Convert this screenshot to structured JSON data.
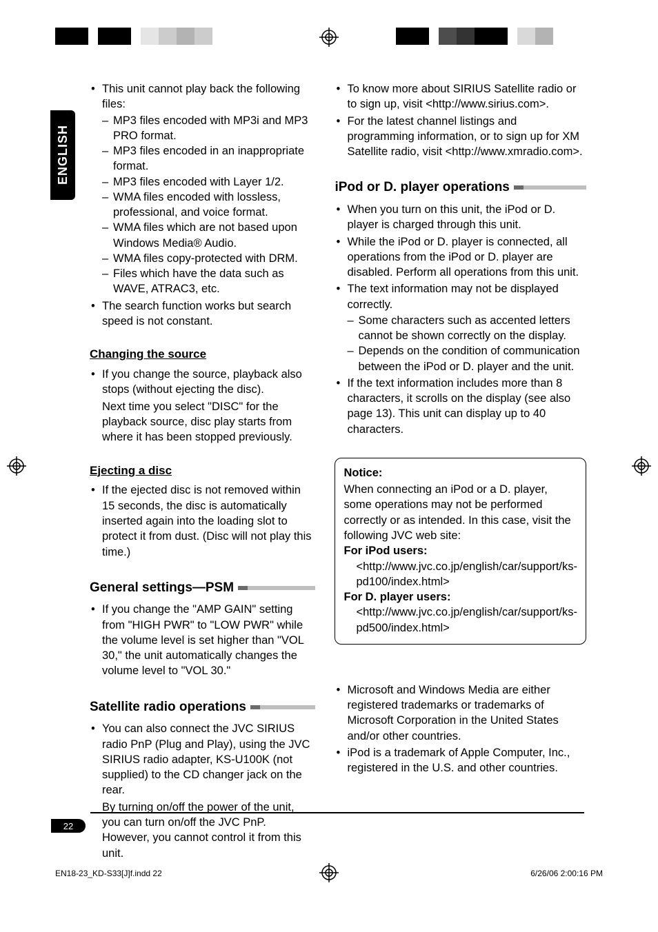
{
  "lang_tab": "ENGLISH",
  "page_number": "22",
  "footer_left": "EN18-23_KD-S33[J]f.indd   22",
  "footer_right": "6/26/06   2:00:16 PM",
  "left_col": {
    "cannot_play_intro": "This unit cannot play back the following files:",
    "cannot_play_items": [
      "MP3 files encoded with MP3i and MP3 PRO format.",
      "MP3 files encoded in an inappropriate format.",
      "MP3 files encoded with Layer 1/2.",
      "WMA files encoded with lossless, professional, and voice format.",
      "WMA files which are not based upon Windows Media® Audio.",
      "WMA files copy-protected with DRM.",
      "Files which have the data such as WAVE, ATRAC3, etc."
    ],
    "search_note": "The search function works but search speed is not constant.",
    "h_change": "Changing the source",
    "change_items": [
      "If you change the source, playback also stops (without ejecting the disc)."
    ],
    "change_cont": "Next time you select \"DISC\" for the playback source, disc play starts from where it has been stopped previously.",
    "h_eject": "Ejecting a disc",
    "eject_items": [
      "If the ejected disc is not removed within 15 seconds, the disc is automatically inserted again into the loading slot to protect it from dust. (Disc will not play this time.)"
    ],
    "h_psm": "General settings—PSM",
    "psm_items": [
      "If you change the \"AMP GAIN\" setting from \"HIGH PWR\" to \"LOW PWR\" while the volume level is set higher than \"VOL 30,\" the unit automatically changes the volume level to \"VOL 30.\""
    ],
    "h_sat": "Satellite radio operations",
    "sat_items": [
      "You can also connect the JVC SIRIUS radio PnP (Plug and Play), using the JVC SIRIUS radio adapter, KS-U100K (not supplied) to the CD changer jack on the rear."
    ],
    "sat_cont": "By turning on/off the power of the unit, you can turn on/off the JVC PnP. However, you cannot control it from this unit."
  },
  "right_col": {
    "top_items": [
      "To know more about SIRIUS Satellite radio or to sign up, visit <http://www.sirius.com>.",
      "For the latest channel listings and programming information, or to sign up for XM Satellite radio, visit <http://www.xmradio.com>."
    ],
    "h_ipod": "iPod or D. player operations",
    "ipod_items": [
      "When you turn on this unit, the iPod or D. player is charged through this unit.",
      "While the iPod or D. player is connected, all operations from the iPod or D. player are disabled. Perform all operations from this unit.",
      "The text information may not be displayed correctly."
    ],
    "ipod_sub": [
      "Some characters such as accented letters cannot be shown correctly on the display.",
      "Depends on the condition of communication between the iPod or D. player and the unit."
    ],
    "ipod_last": "If the text information includes more than 8 characters, it scrolls on the display (see also page 13). This unit can display up to 40 characters.",
    "notice_title": "Notice:",
    "notice_body": "When connecting an iPod or a D. player, some operations may not be performed correctly or as intended. In this case, visit the following JVC web site:",
    "notice_ipod_label": "For iPod users: ",
    "notice_ipod_url": "<http://www.jvc.co.jp/english/car/support/ks-pd100/index.html>",
    "notice_d_label": "For D. player users: ",
    "notice_d_url": "<http://www.jvc.co.jp/english/car/support/ks-pd500/index.html>",
    "trademark_items": [
      "Microsoft and Windows Media are either registered trademarks or trademarks of Microsoft Corporation in the United States and/or other countries.",
      "iPod is a trademark of Apple Computer, Inc., registered in the U.S. and other countries."
    ]
  },
  "marks": {
    "strip_left_colors": [
      "#000000",
      "#ffffff",
      "#000000",
      "#ffffff",
      "#e5e5e5",
      "#cccccc",
      "#b3b3b3",
      "#cccccc"
    ],
    "strip_left_widths": [
      48,
      14,
      48,
      14,
      26,
      26,
      26,
      26
    ],
    "strip_right_colors": [
      "#000000",
      "#ffffff",
      "#4d4d4d",
      "#333333",
      "#000000",
      "#ffffff",
      "#d9d9d9",
      "#b3b3b3"
    ],
    "strip_right_widths": [
      48,
      14,
      26,
      26,
      48,
      14,
      26,
      26
    ]
  }
}
